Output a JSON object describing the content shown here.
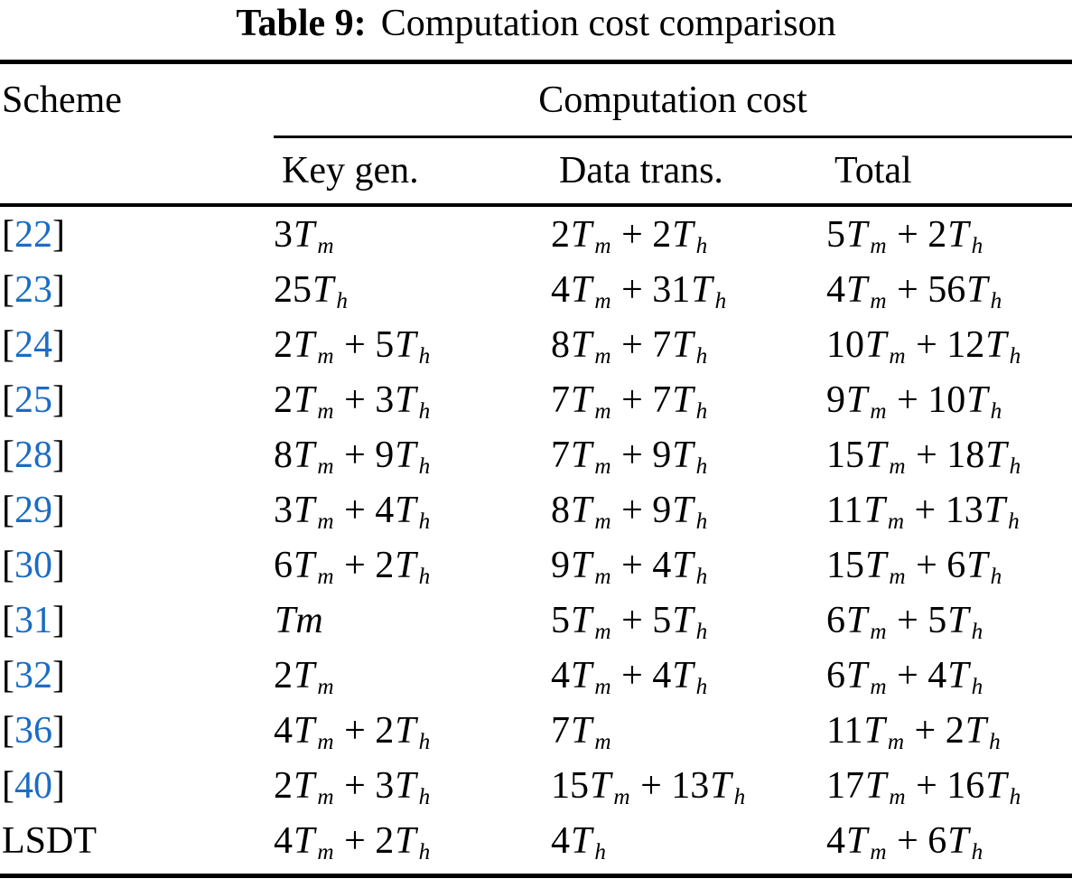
{
  "caption": {
    "label": "Table 9:",
    "text": "Computation cost comparison"
  },
  "table": {
    "scheme_header": "Scheme",
    "span_header": "Computation cost",
    "sub_headers": [
      "Key gen.",
      "Data trans.",
      "Total"
    ],
    "rows": [
      {
        "scheme": "[22]",
        "key_gen": "3T_m",
        "data_trans": "2T_m + 2T_h",
        "total": "5T_m + 2T_h"
      },
      {
        "scheme": "[23]",
        "key_gen": "25T_h",
        "data_trans": "4T_m + 31T_h",
        "total": "4T_m + 56T_h"
      },
      {
        "scheme": "[24]",
        "key_gen": "2T_m + 5T_h",
        "data_trans": "8T_m + 7T_h",
        "total": "10T_m + 12T_h"
      },
      {
        "scheme": "[25]",
        "key_gen": "2T_m + 3T_h",
        "data_trans": "7T_m + 7T_h",
        "total": "9T_m + 10T_h"
      },
      {
        "scheme": "[28]",
        "key_gen": "8T_m + 9T_h",
        "data_trans": "7T_m + 9T_h",
        "total": "15T_m + 18T_h"
      },
      {
        "scheme": "[29]",
        "key_gen": "3T_m + 4T_h",
        "data_trans": "8T_m + 9T_h",
        "total": "11T_m + 13T_h"
      },
      {
        "scheme": "[30]",
        "key_gen": "6T_m + 2T_h",
        "data_trans": "9T_m + 4T_h",
        "total": "15T_m + 6T_h"
      },
      {
        "scheme": "[31]",
        "key_gen": "Tm",
        "data_trans": "5T_m + 5T_h",
        "total": "6T_m + 5T_h"
      },
      {
        "scheme": "[32]",
        "key_gen": "2T_m",
        "data_trans": "4T_m + 4T_h",
        "total": "6T_m + 4T_h"
      },
      {
        "scheme": "[36]",
        "key_gen": "4T_m + 2T_h",
        "data_trans": "7T_m",
        "total": "11T_m + 2T_h"
      },
      {
        "scheme": "[40]",
        "key_gen": "2T_m + 3T_h",
        "data_trans": "15T_m + 13T_h",
        "total": "17T_m + 16T_h"
      },
      {
        "scheme": "LSDT",
        "key_gen": "4T_m + 2T_h",
        "data_trans": "4T_h",
        "total": "4T_m + 6T_h"
      }
    ]
  },
  "colors": {
    "reference_link_blue": "#1b6cc4",
    "text_black": "#000000",
    "background": "#ffffff"
  }
}
